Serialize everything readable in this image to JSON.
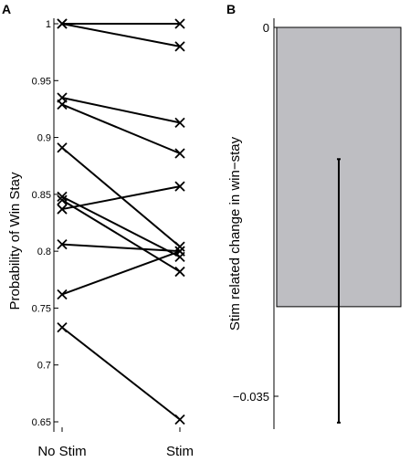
{
  "chart_data": [
    {
      "panel_label": "A",
      "type": "line",
      "categories": [
        "No Stim",
        "Stim"
      ],
      "ylabel": "Probability of Win Stay",
      "ylim": [
        0.64,
        1.01
      ],
      "yticks": [
        0.65,
        0.7,
        0.75,
        0.8,
        0.85,
        0.9,
        0.95,
        1
      ],
      "ytick_labels": [
        "0.65",
        "0.7",
        "0.75",
        "0.8",
        "0.85",
        "0.9",
        "0.95",
        "1"
      ],
      "grid": false,
      "marker": "x",
      "line_color": "#000000",
      "series": [
        {
          "values": [
            1.0,
            1.0
          ]
        },
        {
          "values": [
            1.0,
            0.98
          ]
        },
        {
          "values": [
            0.935,
            0.913
          ]
        },
        {
          "values": [
            0.929,
            0.886
          ]
        },
        {
          "values": [
            0.891,
            0.804
          ]
        },
        {
          "values": [
            0.848,
            0.795
          ]
        },
        {
          "values": [
            0.845,
            0.782
          ]
        },
        {
          "values": [
            0.837,
            0.857
          ]
        },
        {
          "values": [
            0.806,
            0.8
          ]
        },
        {
          "values": [
            0.762,
            0.8
          ]
        },
        {
          "values": [
            0.733,
            0.652
          ]
        }
      ]
    },
    {
      "panel_label": "B",
      "type": "bar",
      "categories": [
        ""
      ],
      "values": [
        -0.0265
      ],
      "error_low": -0.0375,
      "error_high": -0.0125,
      "ylabel": "Stim related change in win−stay",
      "ylim": [
        -0.0395,
        0
      ],
      "yticks": [
        0,
        -0.035
      ],
      "ytick_labels": [
        "0",
        "−0.035"
      ],
      "grid": false,
      "bar_color": "#bebec2",
      "bar_edge_color": "#000000",
      "error_color": "#000000"
    }
  ]
}
